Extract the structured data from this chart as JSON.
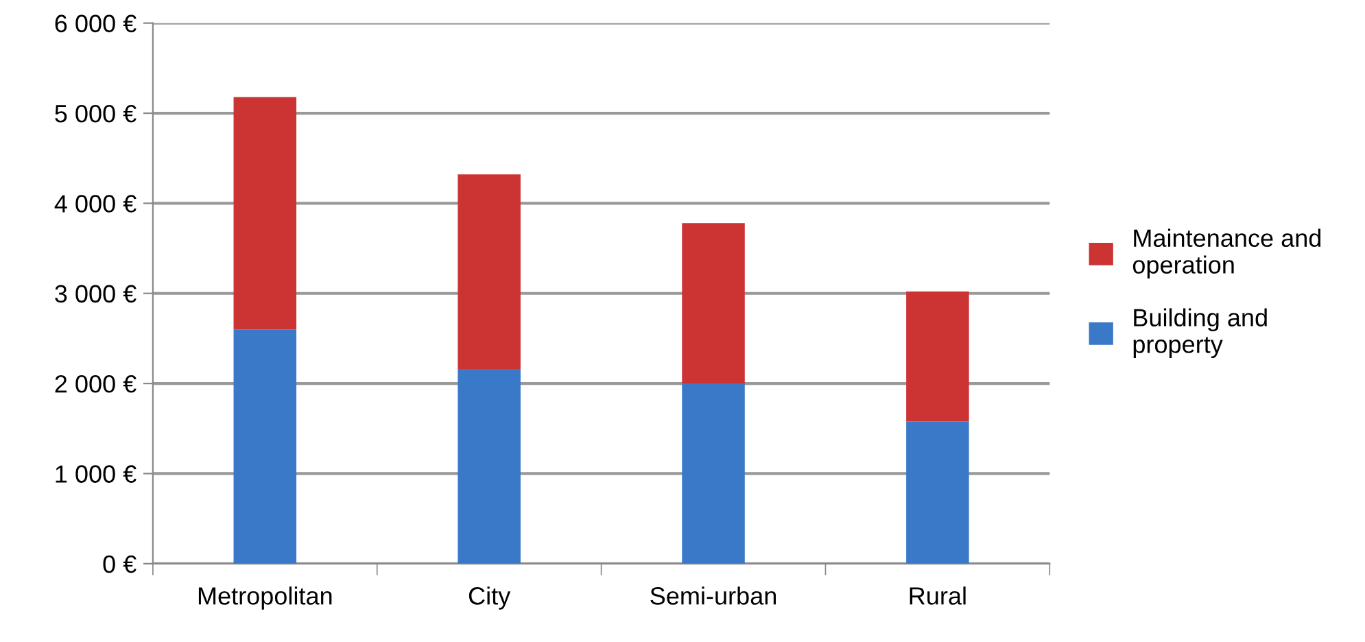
{
  "chart_data": {
    "type": "bar",
    "stacked": true,
    "categories": [
      "Metropolitan",
      "City",
      "Semi-urban",
      "Rural"
    ],
    "series": [
      {
        "name": "Building and property",
        "color": "#3a78c8",
        "values": [
          2600,
          2160,
          2000,
          1580
        ]
      },
      {
        "name": "Maintenance and operation",
        "color": "#cc3333",
        "values": [
          2580,
          2160,
          1780,
          1440
        ]
      }
    ],
    "ylim": [
      0,
      6000
    ],
    "yticks": [
      {
        "value": 0,
        "label": "0 €"
      },
      {
        "value": 1000,
        "label": "1 000 €"
      },
      {
        "value": 2000,
        "label": "2 000 €"
      },
      {
        "value": 3000,
        "label": "3 000 €"
      },
      {
        "value": 4000,
        "label": "4 000 €"
      },
      {
        "value": 5000,
        "label": "5 000 €"
      },
      {
        "value": 6000,
        "label": "6 000 €"
      }
    ],
    "grid": "y",
    "legend": "right"
  }
}
